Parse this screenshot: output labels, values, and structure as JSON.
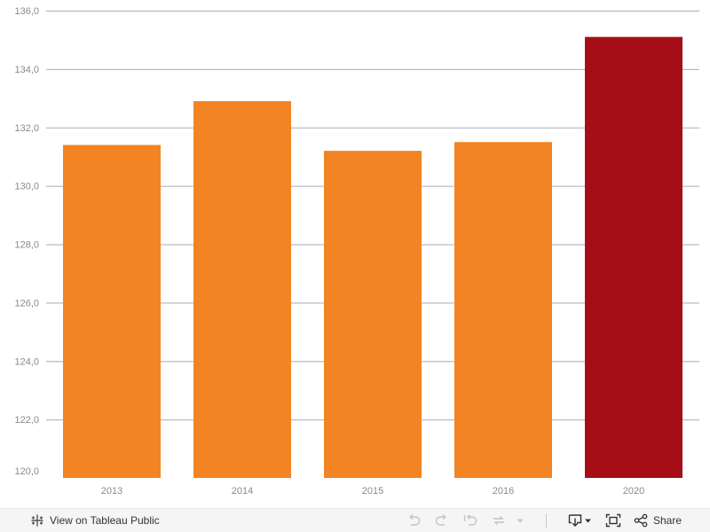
{
  "chart_data": {
    "type": "bar",
    "categories": [
      "2013",
      "2014",
      "2015",
      "2016",
      "2020"
    ],
    "values": [
      131.4,
      132.9,
      131.2,
      131.5,
      135.1
    ],
    "bar_colors": [
      "#f28423",
      "#f28423",
      "#f28423",
      "#f28423",
      "#a50e16"
    ],
    "ylim": [
      120,
      136
    ],
    "yticks": [
      {
        "value": 120,
        "label": "120,0"
      },
      {
        "value": 122,
        "label": "122,0"
      },
      {
        "value": 124,
        "label": "124,0"
      },
      {
        "value": 126,
        "label": "126,0"
      },
      {
        "value": 128,
        "label": "128,0"
      },
      {
        "value": 130,
        "label": "130,0"
      },
      {
        "value": 132,
        "label": "132,0"
      },
      {
        "value": 134,
        "label": "134,0"
      },
      {
        "value": 136,
        "label": "136,0"
      }
    ],
    "grid": true,
    "gridline_color": "#a9abbe",
    "title": "",
    "xlabel": "",
    "ylabel": ""
  },
  "toolbar": {
    "view_on_label": "View on Tableau Public",
    "share_label": "Share",
    "icons": {
      "view": "tableau-logo-icon",
      "undo": "undo-icon",
      "redo": "redo-icon",
      "revert": "revert-icon",
      "refresh": "refresh-icon",
      "more": "dropdown-arrow-icon",
      "download": "download-icon",
      "fullscreen": "fullscreen-icon",
      "share": "share-icon"
    }
  }
}
